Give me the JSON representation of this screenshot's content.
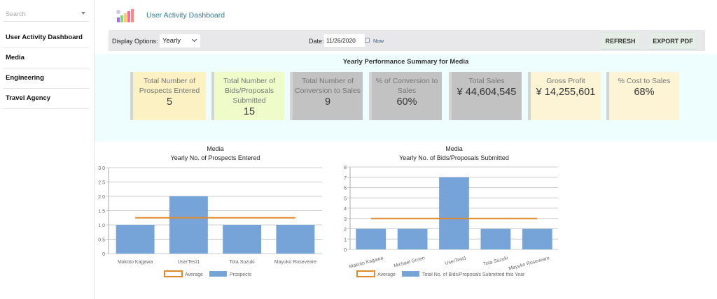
{
  "sidebar": {
    "search_placeholder": "Search",
    "items": [
      "User Activity Dashboard",
      "Media",
      "Engineering",
      "Travel Agency"
    ]
  },
  "header": {
    "title": "User Activity Dashboard"
  },
  "toolbar": {
    "display_label": "Display Options:",
    "display_value": "Yearly",
    "date_label": "Date:",
    "date_value": "11/26/2020",
    "now_label": "Now",
    "refresh": "REFRESH",
    "export": "EXPORT PDF"
  },
  "summary": {
    "title": "Yearly Performance Summary for Media",
    "cards": [
      {
        "label": "Total Number of Prospects Entered",
        "value": "5",
        "color": "#fbf1c2"
      },
      {
        "label": "Total Number of Bids/Proposals Submitted",
        "value": "15",
        "color": "#effcc9"
      },
      {
        "label": "Total Number of Conversion to Sales",
        "value": "9",
        "color": "#c2c2c2"
      },
      {
        "label": "% of Conversion to Sales",
        "value": "60%",
        "color": "#c2c2c2"
      },
      {
        "label": "Total Sales",
        "value": "¥ 44,604,545",
        "color": "#c2c2c2"
      },
      {
        "label": "Gross Profit",
        "value": "¥ 14,255,601",
        "color": "#fcf4d4"
      },
      {
        "label": "% Cost to Sales",
        "value": "68%",
        "color": "#fcf4d4"
      }
    ]
  },
  "chart_data": [
    {
      "type": "bar",
      "title": "Media",
      "subtitle": "Yearly No. of Prospects Entered",
      "categories": [
        "Makoto Kagawa",
        "UserTest1",
        "Tota Suzuki",
        "Mayuko Roseveare"
      ],
      "series": [
        {
          "name": "Prospects",
          "values": [
            1,
            2,
            1,
            1
          ],
          "color": "#77a4d8"
        },
        {
          "name": "Average",
          "type": "line",
          "values": [
            1.25,
            1.25,
            1.25,
            1.25
          ],
          "color": "#e08a2c"
        }
      ],
      "ylim": [
        0,
        3
      ],
      "yticks": [
        "0",
        "0.5",
        "1.0",
        "1.5",
        "2.0",
        "2.5",
        "3.0"
      ],
      "legend": "bottom"
    },
    {
      "type": "bar",
      "title": "Media",
      "subtitle": "Yearly No. of Bids/Proposals Submitted",
      "categories": [
        "Makoto Kagawa",
        "Michael Groen",
        "UserTest1",
        "Tota Suzuki",
        "Mayuko Roseveare"
      ],
      "series": [
        {
          "name": "Total No. of Bids/Proposals Submitted this Year",
          "values": [
            2,
            2,
            7,
            2,
            2
          ],
          "color": "#77a4d8"
        },
        {
          "name": "Average",
          "type": "line",
          "values": [
            3,
            3,
            3,
            3,
            3
          ],
          "color": "#e08a2c"
        }
      ],
      "ylim": [
        0,
        8
      ],
      "yticks": [
        "0",
        "1",
        "2",
        "3",
        "4",
        "5",
        "6",
        "7",
        "8"
      ],
      "legend": "bottom"
    }
  ]
}
